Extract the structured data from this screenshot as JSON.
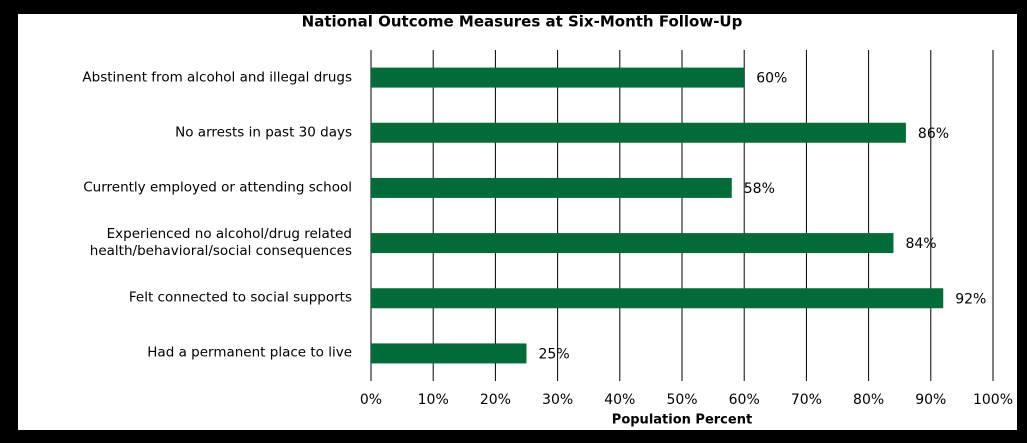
{
  "chart_data": {
    "type": "hbar",
    "title": "National Outcome Measures at Six-Month Follow-Up",
    "x_label": "Population Percent",
    "categories": [
      "Abstinent from alcohol and illegal drugs",
      "No arrests in past 30 days",
      "Currently employed or attending school",
      "Experienced no alcohol/drug related health/behavioral/social consequences",
      "Felt connected to social supports",
      "Had a permanent place to live"
    ],
    "values": [
      60,
      86,
      58,
      84,
      92,
      25
    ],
    "value_labels": [
      "60%",
      "86%",
      "58%",
      "84%",
      "92%",
      "25%"
    ],
    "color": "#036b38",
    "xlim": [
      0,
      100
    ],
    "xticks": [
      {
        "value": 0,
        "label": "0%"
      },
      {
        "value": 10,
        "label": "10%"
      },
      {
        "value": 20,
        "label": "20%"
      },
      {
        "value": 30,
        "label": "30%"
      },
      {
        "value": 40,
        "label": "40%"
      },
      {
        "value": 50,
        "label": "50%"
      },
      {
        "value": 60,
        "label": "60%"
      },
      {
        "value": 70,
        "label": "70%"
      },
      {
        "value": 80,
        "label": "80%"
      },
      {
        "value": 90,
        "label": "90%"
      },
      {
        "value": 100,
        "label": "100%"
      }
    ],
    "grid": true
  }
}
